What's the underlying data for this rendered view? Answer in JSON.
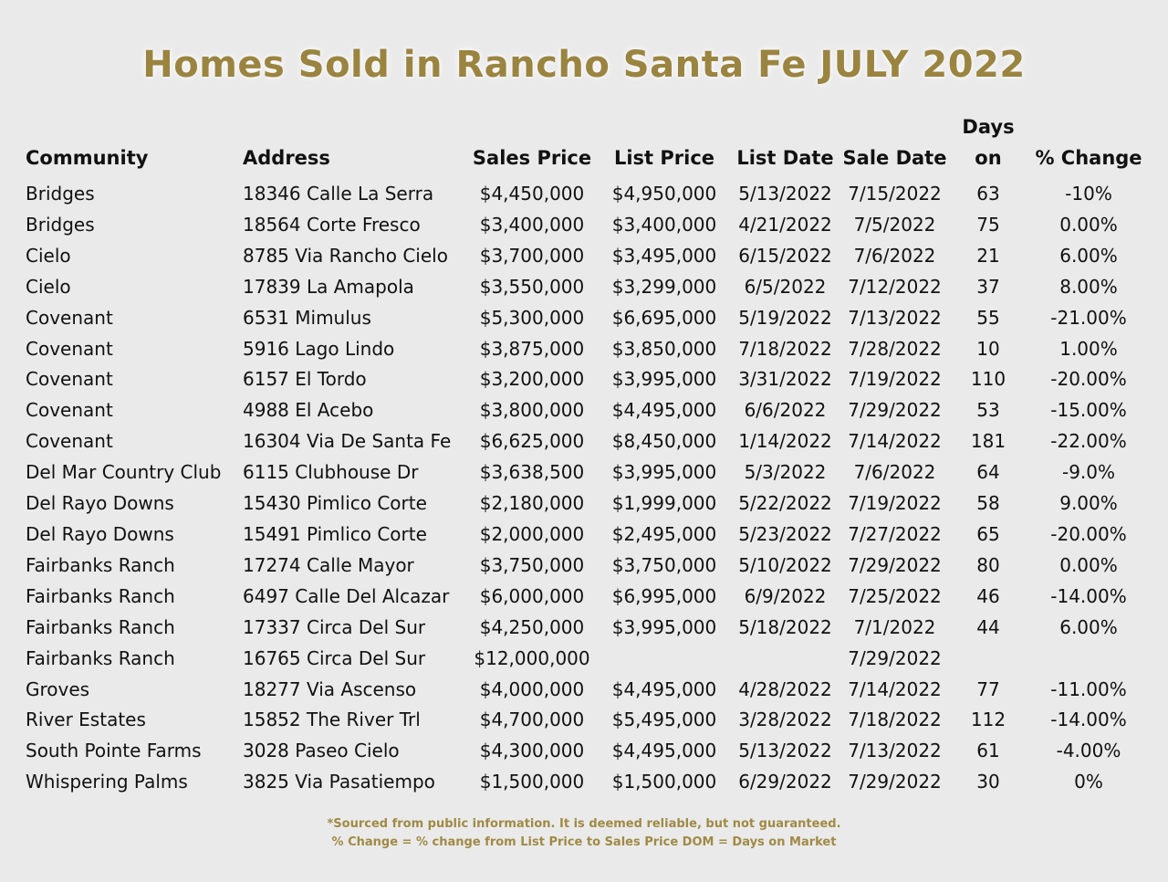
{
  "title": "Homes Sold in Rancho Santa Fe  JULY 2022",
  "columns": {
    "community": "Community",
    "address": "Address",
    "sales_price": "Sales Price",
    "list_price": "List Price",
    "list_date": "List Date",
    "sale_date": "Sale Date",
    "days_line1": "Days",
    "days_line2": "on",
    "pct_change": "% Change"
  },
  "rows": [
    {
      "community": "Bridges",
      "address": "18346 Calle La Serra",
      "sales_price": "$4,450,000",
      "list_price": "$4,950,000",
      "list_date": "5/13/2022",
      "sale_date": "7/15/2022",
      "days": "63",
      "pct_change": "-10%"
    },
    {
      "community": "Bridges",
      "address": "18564 Corte Fresco",
      "sales_price": "$3,400,000",
      "list_price": "$3,400,000",
      "list_date": "4/21/2022",
      "sale_date": "7/5/2022",
      "days": "75",
      "pct_change": "0.00%"
    },
    {
      "community": "Cielo",
      "address": "8785 Via Rancho Cielo",
      "sales_price": "$3,700,000",
      "list_price": "$3,495,000",
      "list_date": "6/15/2022",
      "sale_date": "7/6/2022",
      "days": "21",
      "pct_change": "6.00%"
    },
    {
      "community": "Cielo",
      "address": "17839 La Amapola",
      "sales_price": "$3,550,000",
      "list_price": "$3,299,000",
      "list_date": "6/5/2022",
      "sale_date": "7/12/2022",
      "days": "37",
      "pct_change": "8.00%"
    },
    {
      "community": "Covenant",
      "address": "6531 Mimulus",
      "sales_price": "$5,300,000",
      "list_price": "$6,695,000",
      "list_date": "5/19/2022",
      "sale_date": "7/13/2022",
      "days": "55",
      "pct_change": "-21.00%"
    },
    {
      "community": "Covenant",
      "address": "5916 Lago Lindo",
      "sales_price": "$3,875,000",
      "list_price": "$3,850,000",
      "list_date": "7/18/2022",
      "sale_date": "7/28/2022",
      "days": "10",
      "pct_change": "1.00%"
    },
    {
      "community": "Covenant",
      "address": "6157 El Tordo",
      "sales_price": "$3,200,000",
      "list_price": "$3,995,000",
      "list_date": "3/31/2022",
      "sale_date": "7/19/2022",
      "days": "110",
      "pct_change": "-20.00%"
    },
    {
      "community": "Covenant",
      "address": "4988 El Acebo",
      "sales_price": "$3,800,000",
      "list_price": "$4,495,000",
      "list_date": "6/6/2022",
      "sale_date": "7/29/2022",
      "days": "53",
      "pct_change": "-15.00%"
    },
    {
      "community": "Covenant",
      "address": "16304 Via De Santa Fe",
      "sales_price": "$6,625,000",
      "list_price": "$8,450,000",
      "list_date": "1/14/2022",
      "sale_date": "7/14/2022",
      "days": "181",
      "pct_change": "-22.00%"
    },
    {
      "community": "Del Mar Country Club",
      "address": "6115 Clubhouse Dr",
      "sales_price": "$3,638,500",
      "list_price": "$3,995,000",
      "list_date": "5/3/2022",
      "sale_date": "7/6/2022",
      "days": "64",
      "pct_change": "-9.0%"
    },
    {
      "community": "Del Rayo Downs",
      "address": "15430 Pimlico Corte",
      "sales_price": "$2,180,000",
      "list_price": "$1,999,000",
      "list_date": "5/22/2022",
      "sale_date": "7/19/2022",
      "days": "58",
      "pct_change": "9.00%"
    },
    {
      "community": "Del Rayo Downs",
      "address": "15491 Pimlico Corte",
      "sales_price": "$2,000,000",
      "list_price": "$2,495,000",
      "list_date": "5/23/2022",
      "sale_date": "7/27/2022",
      "days": "65",
      "pct_change": "-20.00%"
    },
    {
      "community": "Fairbanks Ranch",
      "address": "17274 Calle Mayor",
      "sales_price": "$3,750,000",
      "list_price": "$3,750,000",
      "list_date": "5/10/2022",
      "sale_date": "7/29/2022",
      "days": "80",
      "pct_change": "0.00%"
    },
    {
      "community": "Fairbanks Ranch",
      "address": "6497  Calle Del Alcazar",
      "sales_price": "$6,000,000",
      "list_price": "$6,995,000",
      "list_date": "6/9/2022",
      "sale_date": "7/25/2022",
      "days": "46",
      "pct_change": "-14.00%"
    },
    {
      "community": "Fairbanks Ranch",
      "address": "17337 Circa Del Sur",
      "sales_price": "$4,250,000",
      "list_price": "$3,995,000",
      "list_date": "5/18/2022",
      "sale_date": "7/1/2022",
      "days": "44",
      "pct_change": "6.00%"
    },
    {
      "community": "Fairbanks Ranch",
      "address": "16765 Circa Del Sur",
      "sales_price": "$12,000,000",
      "list_price": "",
      "list_date": "",
      "sale_date": "7/29/2022",
      "days": "",
      "pct_change": ""
    },
    {
      "community": "Groves",
      "address": "18277 Via Ascenso",
      "sales_price": "$4,000,000",
      "list_price": "$4,495,000",
      "list_date": "4/28/2022",
      "sale_date": "7/14/2022",
      "days": "77",
      "pct_change": "-11.00%"
    },
    {
      "community": "River Estates",
      "address": "15852 The River Trl",
      "sales_price": "$4,700,000",
      "list_price": "$5,495,000",
      "list_date": "3/28/2022",
      "sale_date": "7/18/2022",
      "days": "112",
      "pct_change": "-14.00%"
    },
    {
      "community": "South Pointe Farms",
      "address": "3028 Paseo Cielo",
      "sales_price": "$4,300,000",
      "list_price": "$4,495,000",
      "list_date": "5/13/2022",
      "sale_date": "7/13/2022",
      "days": "61",
      "pct_change": "-4.00%"
    },
    {
      "community": "Whispering Palms",
      "address": "3825 Via Pasatiempo",
      "sales_price": "$1,500,000",
      "list_price": "$1,500,000",
      "list_date": "6/29/2022",
      "sale_date": "7/29/2022",
      "days": "30",
      "pct_change": "0%"
    }
  ],
  "footer": {
    "line1": "*Sourced from public information. It is deemed reliable, but not guaranteed.",
    "line2": "% Change = % change from List Price to Sales Price DOM = Days on Market"
  },
  "colors": {
    "title": "#9a8440",
    "footer": "#a08a45",
    "background": "#eaeaea"
  }
}
